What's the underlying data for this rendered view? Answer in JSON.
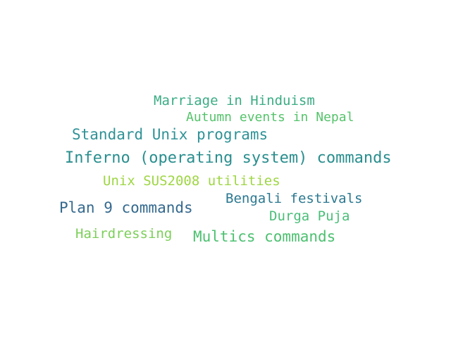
{
  "words": [
    {
      "text": "Marriage in Hinduism",
      "color": "#3bac84"
    },
    {
      "text": "Autumn events in Nepal",
      "color": "#55c36b"
    },
    {
      "text": "Standard Unix programs",
      "color": "#2f9296"
    },
    {
      "text": "Inferno (operating system) commands",
      "color": "#2a8e8e"
    },
    {
      "text": "Unix SUS2008 utilities",
      "color": "#9ed643"
    },
    {
      "text": "Bengali festivals",
      "color": "#2b7890"
    },
    {
      "text": "Plan 9 commands",
      "color": "#34698e"
    },
    {
      "text": "Durga Puja",
      "color": "#49be78"
    },
    {
      "text": "Hairdressing",
      "color": "#7ccf59"
    },
    {
      "text": "Multics commands",
      "color": "#4cc070"
    }
  ]
}
